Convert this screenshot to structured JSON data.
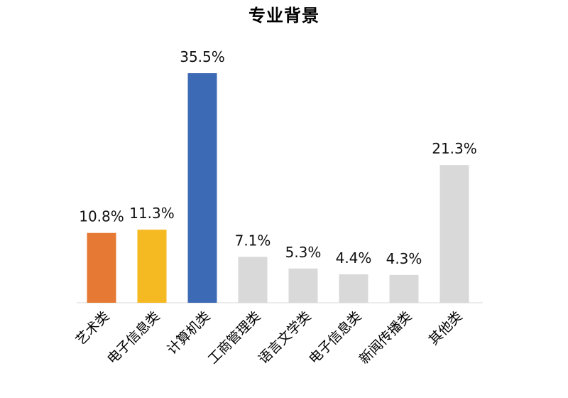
{
  "chart_data": {
    "type": "bar",
    "title": "专业背景",
    "categories": [
      "艺术类",
      "电子信息类",
      "计算机类",
      "工商管理类",
      "语言文学类",
      "电子信息类",
      "新闻传播类",
      "其他类"
    ],
    "values": [
      10.8,
      11.3,
      35.5,
      7.1,
      5.3,
      4.4,
      4.3,
      21.3
    ],
    "data_labels": [
      "10.8%",
      "11.3%",
      "35.5%",
      "7.1%",
      "5.3%",
      "4.4%",
      "4.3%",
      "21.3%"
    ],
    "colors": [
      "#E67A35",
      "#F5B921",
      "#3C6AB5",
      "#D9D9D9",
      "#D9D9D9",
      "#D9D9D9",
      "#D9D9D9",
      "#D9D9D9"
    ],
    "ylim": [
      0,
      35.5
    ],
    "xlabel": "",
    "ylabel": "",
    "grid": false,
    "legend": "none"
  }
}
